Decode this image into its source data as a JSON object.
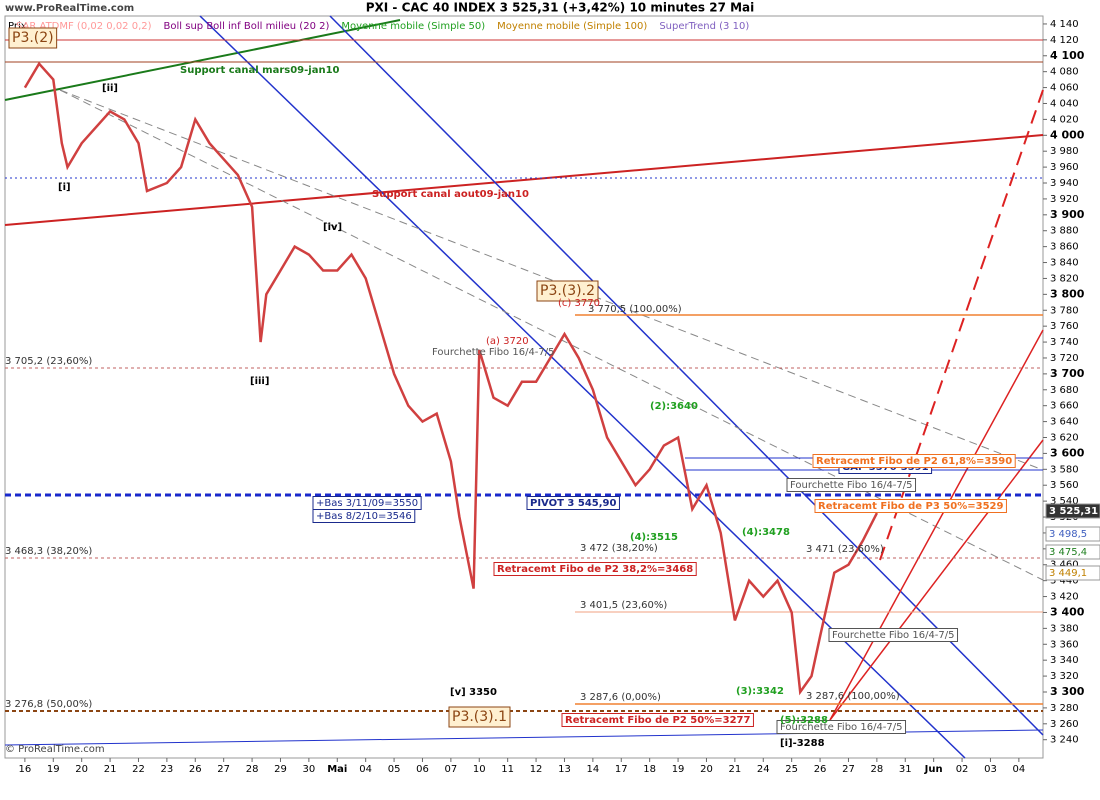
{
  "chart_data": {
    "type": "line",
    "site": "www.ProRealTime.com",
    "title": "PXI - CAC 40 INDEX     3 525,31 (+3,42%)     10 minutes  27 Mai",
    "indicators": [
      {
        "text": "SAR ATDMF (0,02 0,02 0,2)",
        "color": "#ff9999"
      },
      {
        "text": "Boll sup Boll inf Boll milieu (20 2)",
        "color": "#800080"
      },
      {
        "text": "Moyenne mobile (Simple 50)",
        "color": "#20a020"
      },
      {
        "text": "Moyenne mobile (Simple 100)",
        "color": "#c08000"
      },
      {
        "text": "SuperTrend (3 10)",
        "color": "#8060c0"
      }
    ],
    "y_label": "Prix",
    "copyright": "© ProRealTime.com",
    "color": "#d04040",
    "x": [
      0,
      0.5,
      1,
      1.3,
      1.5,
      2,
      2.5,
      3,
      3.5,
      4,
      4.3,
      5,
      5.5,
      6,
      6.5,
      7,
      7.5,
      8,
      8.3,
      8.5,
      9,
      9.5,
      10,
      10.5,
      11,
      11.5,
      12,
      12.5,
      13,
      13.5,
      14,
      14.5,
      15,
      15.3,
      15.8,
      16,
      16.5,
      17,
      17.5,
      18,
      18.5,
      19,
      19.5,
      20,
      20.5,
      21,
      21.5,
      22,
      22.5,
      23,
      23.5,
      24,
      24.5,
      25,
      25.5,
      26,
      26.5,
      27,
      27.3,
      27.7,
      28,
      28.5,
      29,
      29.5,
      30
    ],
    "values": [
      4060,
      4090,
      4070,
      3990,
      3960,
      3990,
      4010,
      4030,
      4020,
      3990,
      3930,
      3940,
      3960,
      4020,
      3990,
      3970,
      3950,
      3910,
      3740,
      3800,
      3830,
      3860,
      3850,
      3830,
      3830,
      3850,
      3820,
      3760,
      3700,
      3660,
      3640,
      3650,
      3590,
      3520,
      3430,
      3730,
      3670,
      3660,
      3690,
      3690,
      3720,
      3750,
      3720,
      3680,
      3620,
      3590,
      3560,
      3580,
      3610,
      3620,
      3530,
      3560,
      3500,
      3390,
      3440,
      3420,
      3440,
      3400,
      3300,
      3320,
      3370,
      3450,
      3460,
      3490,
      3525
    ],
    "xlim": [
      -0.7,
      35.85
    ],
    "xticks": [
      {
        "value": 0,
        "label": "16"
      },
      {
        "value": 1,
        "label": "19"
      },
      {
        "value": 2,
        "label": "20"
      },
      {
        "value": 3,
        "label": "21"
      },
      {
        "value": 4,
        "label": "22"
      },
      {
        "value": 5,
        "label": "23"
      },
      {
        "value": 6,
        "label": "26"
      },
      {
        "value": 7,
        "label": "27"
      },
      {
        "value": 8,
        "label": "28"
      },
      {
        "value": 9,
        "label": "29"
      },
      {
        "value": 10,
        "label": "30"
      },
      {
        "value": 11,
        "label": "Mai"
      },
      {
        "value": 12,
        "label": "04"
      },
      {
        "value": 13,
        "label": "05"
      },
      {
        "value": 14,
        "label": "06"
      },
      {
        "value": 15,
        "label": "07"
      },
      {
        "value": 16,
        "label": "10"
      },
      {
        "value": 17,
        "label": "11"
      },
      {
        "value": 18,
        "label": "12"
      },
      {
        "value": 19,
        "label": "13"
      },
      {
        "value": 20,
        "label": "14"
      },
      {
        "value": 21,
        "label": "17"
      },
      {
        "value": 22,
        "label": "18"
      },
      {
        "value": 23,
        "label": "19"
      },
      {
        "value": 24,
        "label": "20"
      },
      {
        "value": 25,
        "label": "21"
      },
      {
        "value": 26,
        "label": "24"
      },
      {
        "value": 27,
        "label": "25"
      },
      {
        "value": 28,
        "label": "26"
      },
      {
        "value": 29,
        "label": "27"
      },
      {
        "value": 30,
        "label": "28"
      },
      {
        "value": 31,
        "label": "31"
      },
      {
        "value": 32,
        "label": "Jun"
      },
      {
        "value": 33,
        "label": "02"
      },
      {
        "value": 34,
        "label": "03"
      },
      {
        "value": 35,
        "label": "04"
      }
    ],
    "ylim": [
      3217,
      4150
    ],
    "yticks": [
      {
        "value": 3240,
        "label": "3 240"
      },
      {
        "value": 3260,
        "label": "3 260"
      },
      {
        "value": 3280,
        "label": "3 280"
      },
      {
        "value": 3300,
        "label": "3 300"
      },
      {
        "value": 3320,
        "label": "3 320"
      },
      {
        "value": 3340,
        "label": "3 340"
      },
      {
        "value": 3360,
        "label": "3 360"
      },
      {
        "value": 3380,
        "label": "3 380"
      },
      {
        "value": 3400,
        "label": "3 400"
      },
      {
        "value": 3420,
        "label": "3 420"
      },
      {
        "value": 3440,
        "label": "3 440"
      },
      {
        "value": 3460,
        "label": "3 460"
      },
      {
        "value": 3480,
        "label": "3 480"
      },
      {
        "value": 3500,
        "label": "3 500"
      },
      {
        "value": 3520,
        "label": "3 520"
      },
      {
        "value": 3540,
        "label": "3 540"
      },
      {
        "value": 3560,
        "label": "3 560"
      },
      {
        "value": 3580,
        "label": "3 580"
      },
      {
        "value": 3600,
        "label": "3 600"
      },
      {
        "value": 3620,
        "label": "3 620"
      },
      {
        "value": 3640,
        "label": "3 640"
      },
      {
        "value": 3660,
        "label": "3 660"
      },
      {
        "value": 3680,
        "label": "3 680"
      },
      {
        "value": 3700,
        "label": "3 700"
      },
      {
        "value": 3720,
        "label": "3 720"
      },
      {
        "value": 3740,
        "label": "3 740"
      },
      {
        "value": 3760,
        "label": "3 760"
      },
      {
        "value": 3780,
        "label": "3 780"
      },
      {
        "value": 3800,
        "label": "3 800"
      },
      {
        "value": 3820,
        "label": "3 820"
      },
      {
        "value": 3840,
        "label": "3 840"
      },
      {
        "value": 3860,
        "label": "3 860"
      },
      {
        "value": 3880,
        "label": "3 880"
      },
      {
        "value": 3900,
        "label": "3 900"
      },
      {
        "value": 3920,
        "label": "3 920"
      },
      {
        "value": 3940,
        "label": "3 940"
      },
      {
        "value": 3960,
        "label": "3 960"
      },
      {
        "value": 3980,
        "label": "3 980"
      },
      {
        "value": 4000,
        "label": "4 000"
      },
      {
        "value": 4020,
        "label": "4 020"
      },
      {
        "value": 4040,
        "label": "4 040"
      },
      {
        "value": 4060,
        "label": "4 060"
      },
      {
        "value": 4080,
        "label": "4 080"
      },
      {
        "value": 4100,
        "label": "4 100"
      },
      {
        "value": 4120,
        "label": "4 120"
      },
      {
        "value": 4140,
        "label": "4 140"
      }
    ],
    "grid": false,
    "price_tags": [
      "3 525,31",
      "3 498,5",
      "3 475,4",
      "3 449,1"
    ],
    "annotations": [
      "Support canal mars09-jan10",
      "Support canal aout09-jan10",
      "P3.(2)",
      "P3.(3).2",
      "P3.(3).1",
      "[v] 3350",
      "[i]-3288",
      "[ii]",
      "[iii]",
      "[iv]",
      "[i]",
      "3 705,2 (23,60%)",
      "3 468,3 (38,20%)",
      "3 276,8 (50,00%)",
      "3 770,5 (100,00%)",
      "3 472 (38,20%)",
      "3 401,5 (23,60%)",
      "3 287,6 (0,00%)",
      "3 471 (23,60%)",
      "3 287,6 (100,00%)",
      "Retracemt Fibo de P2 38,2%=3468",
      "Retracemt Fibo de P2 50%=3277",
      "PIVOT 3 545,90",
      "+Bas 3/11/09=3550",
      "+Bas 8/2/10=3546",
      "GAP 3576-3591",
      "Retracemt Fibo de P2 61,8%=3590",
      "Retracemt Fibo de P3 50%=3529",
      "Fourchette Fibo 16/4-7/5",
      "Fourchette Fibo 16/4-7/5",
      "Fourchette Fibo 16/4-7/5",
      "Fourchette Fibo 16/4-7/5",
      "(2):3640",
      "(4):3478",
      "(4):3515",
      "(3):3342",
      "(5):3288",
      "(c) 3770",
      "(a) 3720"
    ]
  }
}
